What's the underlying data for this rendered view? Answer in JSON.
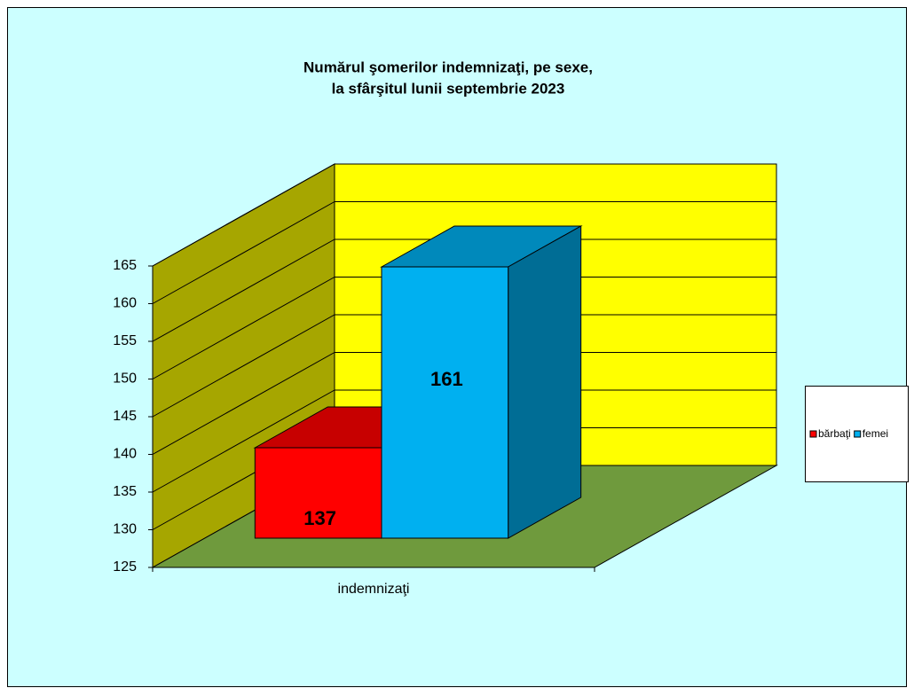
{
  "chart_data": {
    "type": "bar3d",
    "title": [
      "Numărul şomerilor  indemnizaţi,  pe sexe,",
      "la sfârşitul  lunii  septembrie  2023"
    ],
    "categories": [
      "indemnizaţi"
    ],
    "series": [
      {
        "name": "bărbaţi",
        "color": "#ff0000",
        "values": [
          137
        ]
      },
      {
        "name": "femei",
        "color": "#00b0f0",
        "values": [
          161
        ]
      }
    ],
    "ylim": [
      125,
      165
    ],
    "yticks": [
      125,
      130,
      135,
      140,
      145,
      150,
      155,
      160,
      165
    ],
    "grid": true,
    "legend": "right"
  }
}
